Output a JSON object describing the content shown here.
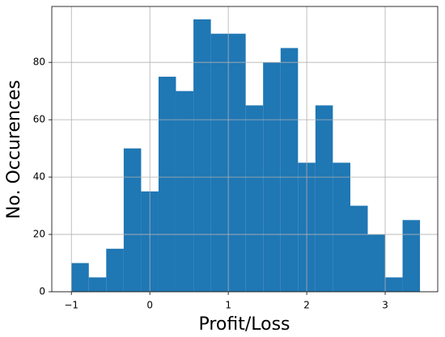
{
  "chart_data": {
    "type": "histogram",
    "xlabel": "Profit/Loss",
    "ylabel": "No. Occurences",
    "bins": [
      -1,
      -0.778,
      -0.556,
      -0.333,
      -0.111,
      0.111,
      0.333,
      0.556,
      0.778,
      1,
      1.222,
      1.444,
      1.667,
      1.889,
      2.111,
      2.333,
      2.556,
      2.778,
      3,
      3.222,
      3.444
    ],
    "values": [
      10,
      5,
      15,
      50,
      35,
      75,
      70,
      95,
      90,
      90,
      65,
      80,
      85,
      45,
      65,
      45,
      30,
      20,
      5,
      25
    ],
    "color": "#1f77b4",
    "xlim": [
      -1.25,
      3.67
    ],
    "ylim": [
      0,
      99.5
    ],
    "xticks": [
      {
        "value": -1,
        "label": "−1"
      },
      0,
      1,
      2,
      3
    ],
    "yticks": [
      0,
      20,
      40,
      60,
      80
    ],
    "grid": true
  }
}
